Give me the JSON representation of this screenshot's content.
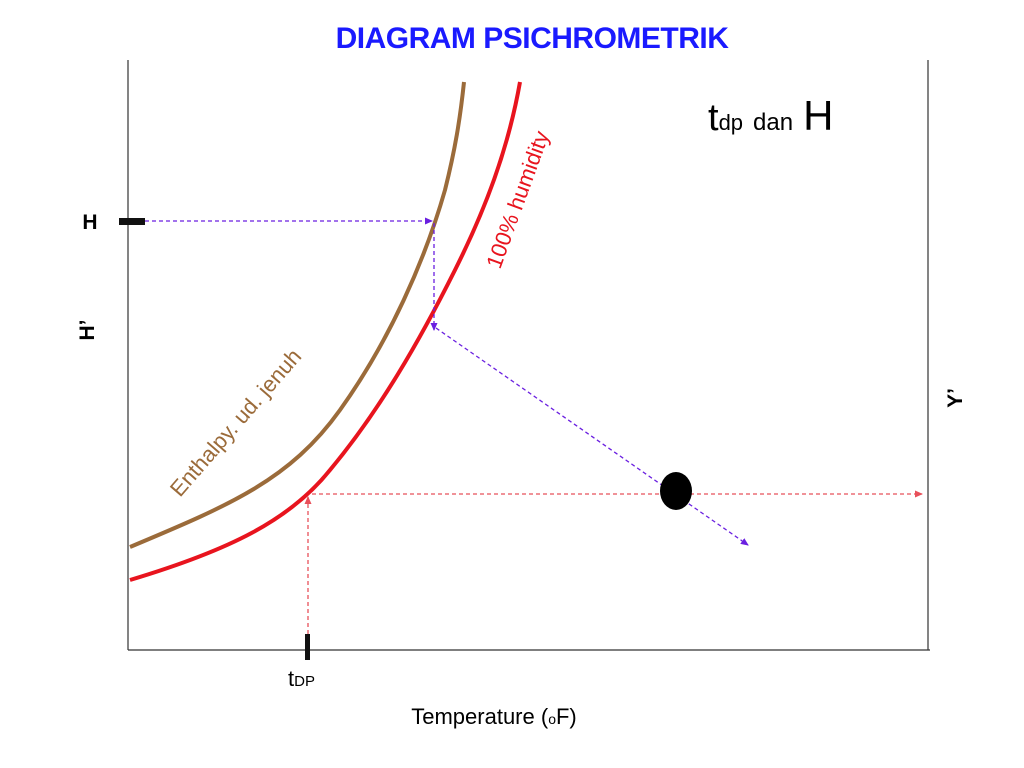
{
  "title": "DIAGRAM PSICHROMETRIK",
  "heading": {
    "t": "t",
    "t_sub": "dp",
    "middle": "dan",
    "h": "H"
  },
  "labels": {
    "h_marker": "H",
    "y_left": "H’",
    "y_right": "Y’",
    "tdp": "t",
    "tdp_sub": "DP",
    "x_axis_prefix": "Temperature (",
    "x_axis_unit_sup": "o",
    "x_axis_suffix": "F)"
  },
  "curves": {
    "saturation": {
      "label": "100% humidity",
      "color": "#e8141e"
    },
    "enthalpy": {
      "label": "Enthalpy. ud. jenuh",
      "color": "#9b6b3a"
    }
  },
  "colors": {
    "construction_blue": "#6a1fe0",
    "construction_red": "#e8505a",
    "axis": "#333333"
  }
}
